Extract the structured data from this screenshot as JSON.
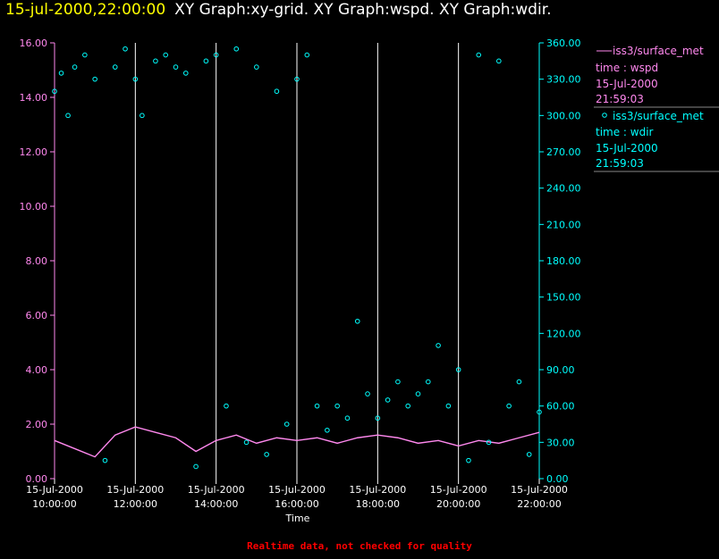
{
  "header": {
    "timestamp": "15-jul-2000,22:00:00",
    "graphs": "XY Graph:xy-grid.  XY Graph:wspd.  XY Graph:wdir."
  },
  "footer": {
    "note": "Realtime data, not checked for quality"
  },
  "colors": {
    "wspd": "#ff88ee",
    "wdir": "#00ffff",
    "background": "#000000",
    "grid": "#ffffff",
    "title": "#ffff00",
    "note": "#ff0000"
  },
  "chart_data": {
    "type": "line",
    "xlabel": "Time",
    "x_range": [
      "15-Jul-2000 10:00:00",
      "15-Jul-2000 22:00:00"
    ],
    "x_ticks": [
      {
        "date": "15-Jul-2000",
        "time": "10:00:00"
      },
      {
        "date": "15-Jul-2000",
        "time": "12:00:00"
      },
      {
        "date": "15-Jul-2000",
        "time": "14:00:00"
      },
      {
        "date": "15-Jul-2000",
        "time": "16:00:00"
      },
      {
        "date": "15-Jul-2000",
        "time": "18:00:00"
      },
      {
        "date": "15-Jul-2000",
        "time": "20:00:00"
      },
      {
        "date": "15-Jul-2000",
        "time": "22:00:00"
      }
    ],
    "y_left": {
      "ylim": [
        0,
        16
      ],
      "ticks": [
        "0.00",
        "2.00",
        "4.00",
        "6.00",
        "8.00",
        "10.00",
        "12.00",
        "14.00",
        "16.00"
      ]
    },
    "y_right": {
      "ylim": [
        0,
        360
      ],
      "ticks": [
        "0.00",
        "30.00",
        "60.00",
        "90.00",
        "120.00",
        "150.00",
        "180.00",
        "210.00",
        "240.00",
        "270.00",
        "300.00",
        "330.00",
        "360.00"
      ]
    },
    "grid": "vertical",
    "legend_position": "right",
    "series": [
      {
        "name": "iss3/surface_met",
        "line2": "time : wspd",
        "line3": "15-Jul-2000",
        "line4": "21:59:03",
        "axis": "left",
        "style": "line",
        "t": [
          "10:00:00",
          "10:30:00",
          "11:00:00",
          "11:30:00",
          "12:00:00",
          "12:30:00",
          "13:00:00",
          "13:30:00",
          "14:00:00",
          "14:30:00",
          "15:00:00",
          "15:30:00",
          "16:00:00",
          "16:30:00",
          "17:00:00",
          "17:30:00",
          "18:00:00",
          "18:30:00",
          "19:00:00",
          "19:30:00",
          "20:00:00",
          "20:30:00",
          "21:00:00",
          "21:30:00",
          "22:00:00"
        ],
        "values": [
          1.4,
          1.1,
          0.8,
          1.6,
          1.9,
          1.7,
          1.5,
          1.0,
          1.4,
          1.6,
          1.3,
          1.5,
          1.4,
          1.5,
          1.3,
          1.5,
          1.6,
          1.5,
          1.3,
          1.4,
          1.2,
          1.4,
          1.3,
          1.5,
          1.7
        ]
      },
      {
        "name": "iss3/surface_met",
        "line2": "time : wdir",
        "line3": "15-Jul-2000",
        "line4": "21:59:03",
        "axis": "right",
        "style": "scatter",
        "t": [
          "10:00:00",
          "10:10:00",
          "10:20:00",
          "10:30:00",
          "10:45:00",
          "11:00:00",
          "11:15:00",
          "11:30:00",
          "11:45:00",
          "12:00:00",
          "12:10:00",
          "12:30:00",
          "12:45:00",
          "13:00:00",
          "13:15:00",
          "13:30:00",
          "13:45:00",
          "14:00:00",
          "14:15:00",
          "14:30:00",
          "14:45:00",
          "15:00:00",
          "15:15:00",
          "15:30:00",
          "15:45:00",
          "16:00:00",
          "16:15:00",
          "16:30:00",
          "16:45:00",
          "17:00:00",
          "17:15:00",
          "17:30:00",
          "17:45:00",
          "18:00:00",
          "18:15:00",
          "18:30:00",
          "18:45:00",
          "19:00:00",
          "19:15:00",
          "19:30:00",
          "19:45:00",
          "20:00:00",
          "20:15:00",
          "20:30:00",
          "20:45:00",
          "21:00:00",
          "21:15:00",
          "21:30:00",
          "21:45:00",
          "22:00:00"
        ],
        "values": [
          320,
          335,
          300,
          340,
          350,
          330,
          15,
          340,
          355,
          330,
          300,
          345,
          350,
          340,
          335,
          10,
          345,
          350,
          60,
          355,
          30,
          340,
          20,
          320,
          45,
          330,
          350,
          60,
          40,
          60,
          50,
          130,
          70,
          50,
          65,
          80,
          60,
          70,
          80,
          110,
          60,
          90,
          15,
          350,
          30,
          345,
          60,
          80,
          20,
          55
        ]
      }
    ]
  }
}
